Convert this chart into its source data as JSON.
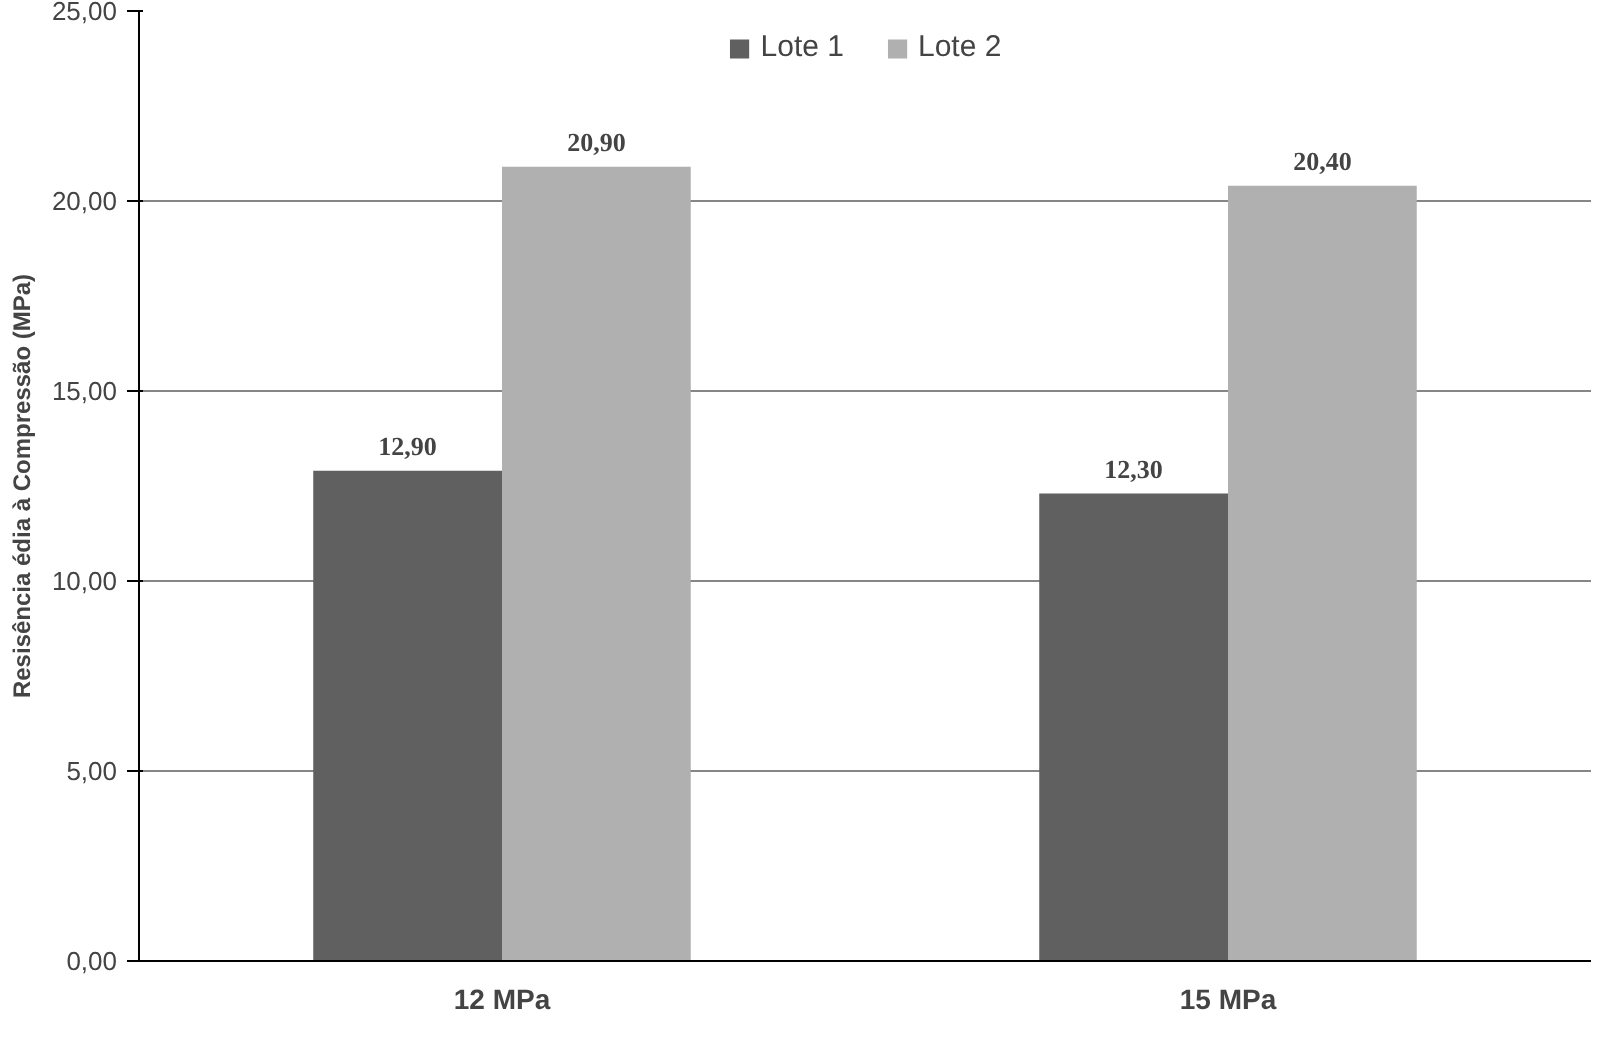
{
  "chart_data": {
    "type": "bar",
    "ylabel": "Resisência édia à Compressão (MPa)",
    "categories": [
      "12 MPa",
      "15 MPa"
    ],
    "series": [
      {
        "name": "Lote 1",
        "color": "#606060",
        "values": [
          12.9,
          12.3
        ],
        "value_labels": [
          "12,90",
          "12,30"
        ]
      },
      {
        "name": "Lote 2",
        "color": "#b0b0b0",
        "values": [
          20.9,
          20.4
        ],
        "value_labels": [
          "20,90",
          "20,40"
        ]
      }
    ],
    "ylim": [
      0,
      25
    ],
    "yticks": [
      {
        "value": 0,
        "label": "0,00"
      },
      {
        "value": 5,
        "label": "5,00"
      },
      {
        "value": 10,
        "label": "10,00"
      },
      {
        "value": 15,
        "label": "15,00"
      },
      {
        "value": 20,
        "label": "20,00"
      },
      {
        "value": 25,
        "label": "25,00"
      }
    ],
    "grid": "y",
    "legend": "top"
  }
}
